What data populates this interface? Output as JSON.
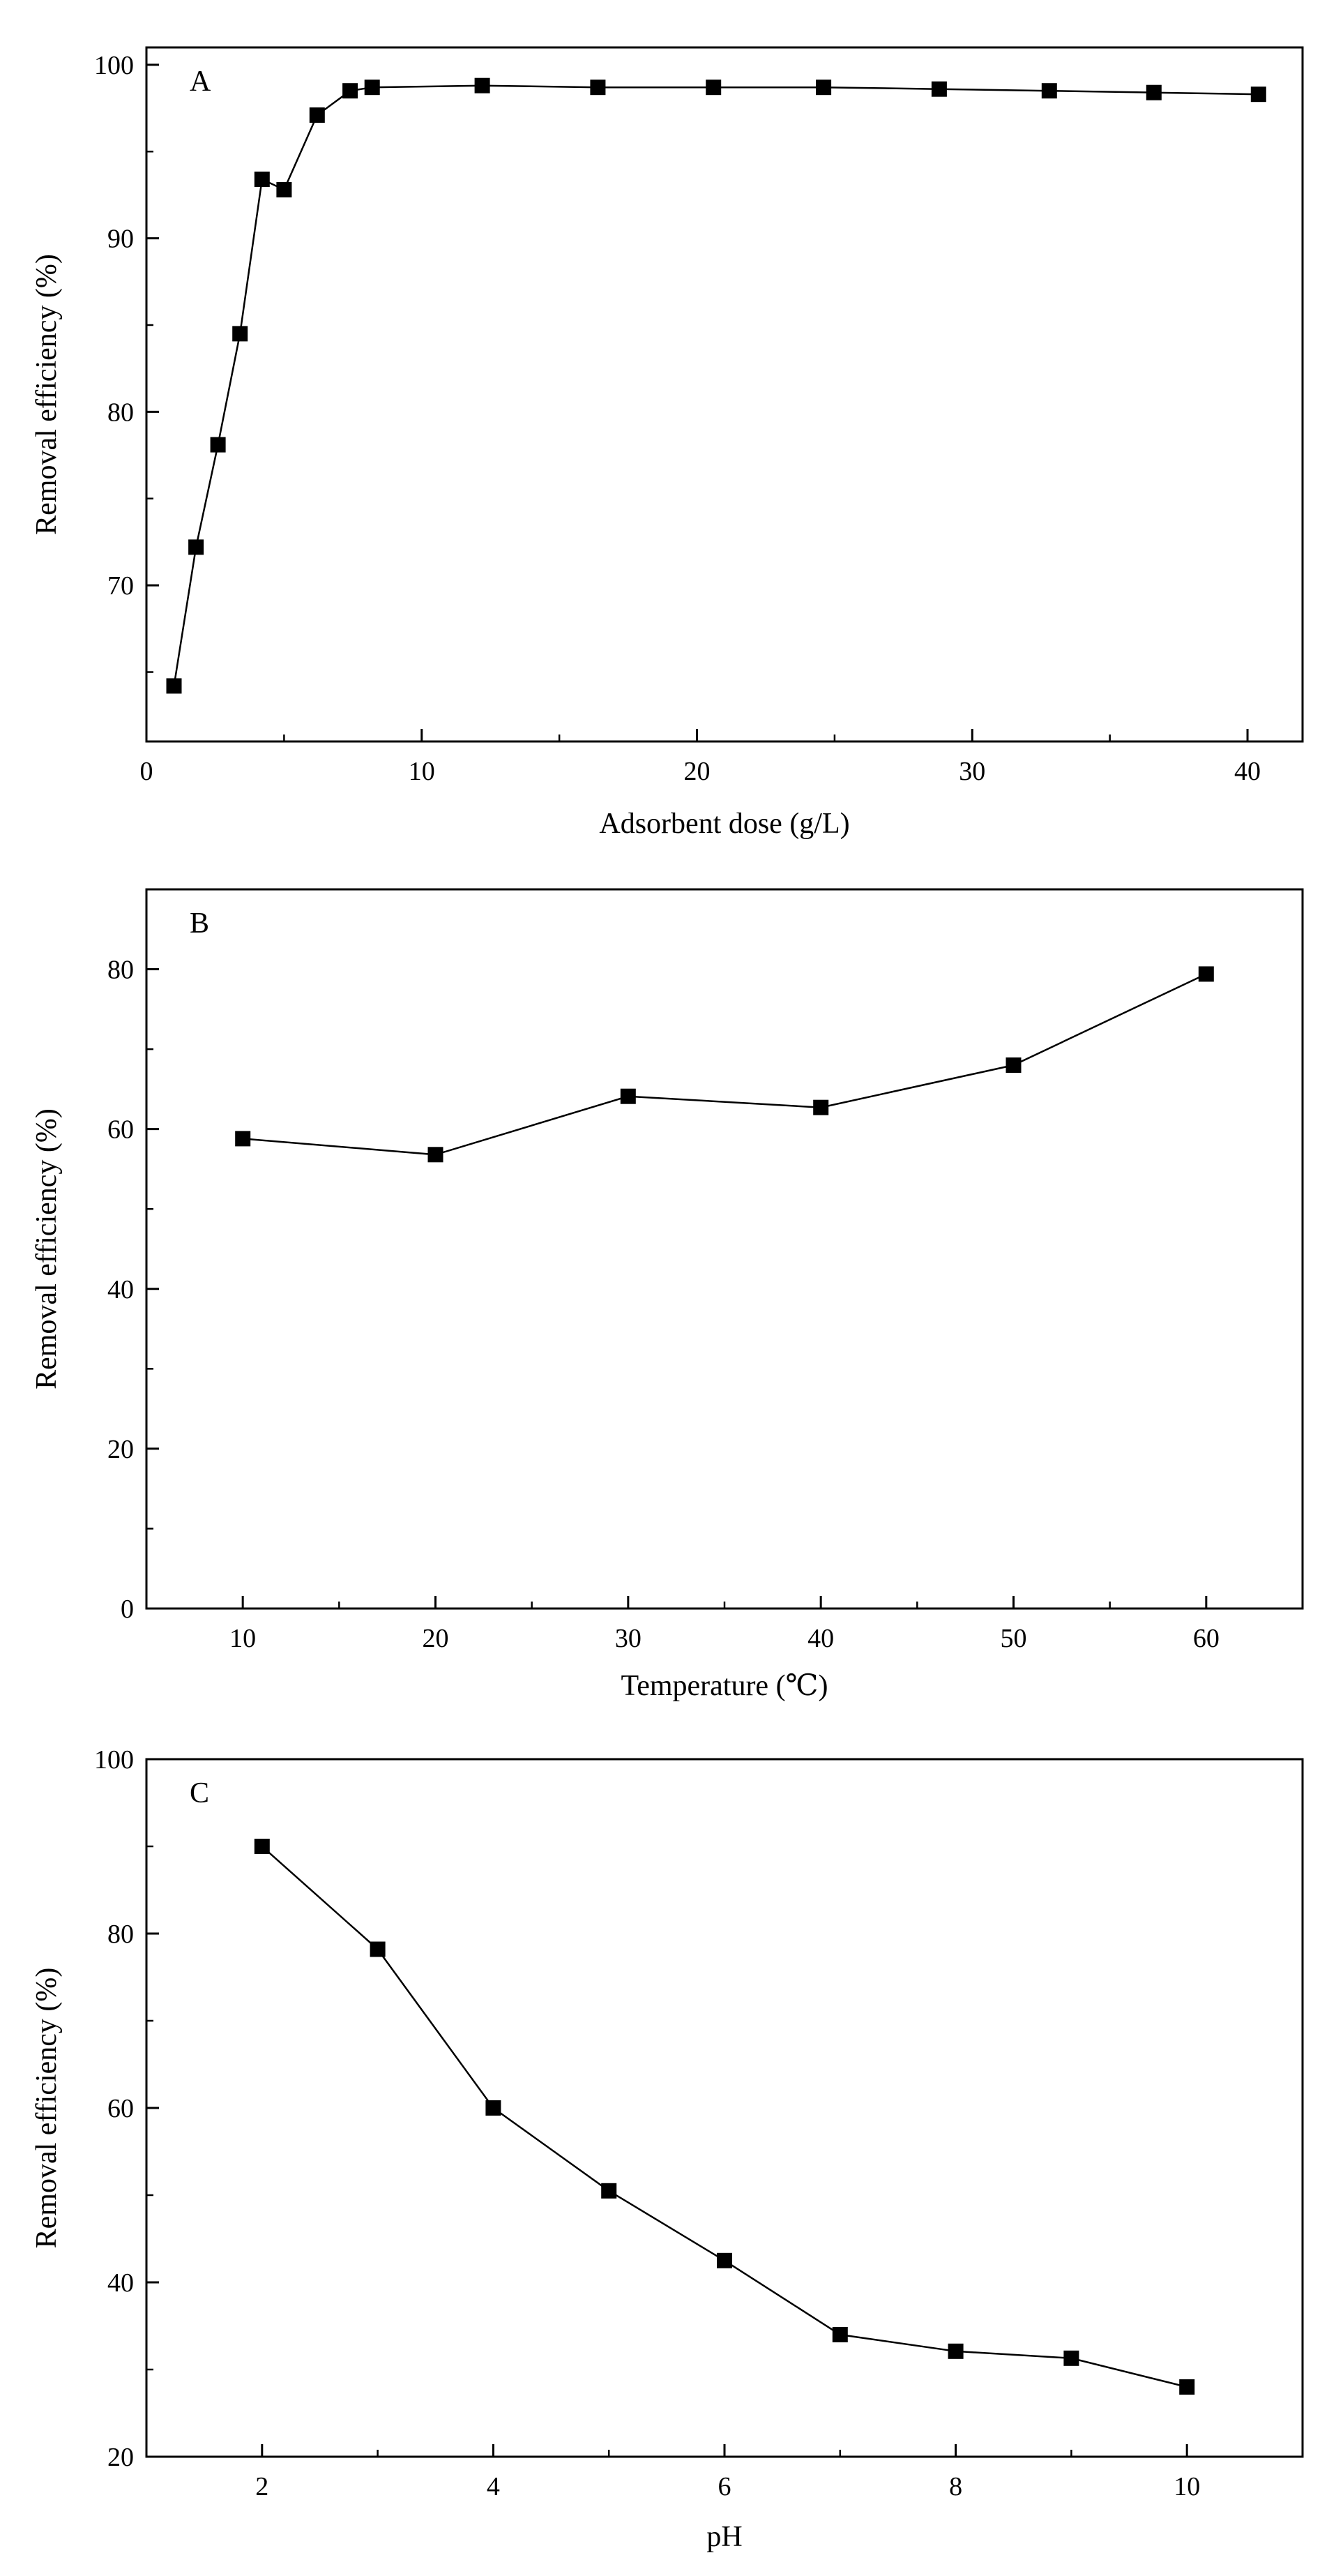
{
  "chart_data": [
    {
      "type": "line",
      "panel_label": "A",
      "title": "",
      "xlabel": "Adsorbent dose (g/L)",
      "ylabel": "Removal efficiency (%)",
      "xlim": [
        0,
        42
      ],
      "ylim": [
        61,
        101
      ],
      "xticks": [
        0,
        10,
        20,
        30,
        40
      ],
      "yticks": [
        70,
        80,
        90,
        100
      ],
      "x_minor_step": 5,
      "y_minor_step": 5,
      "marker": "square",
      "series": [
        {
          "name": "Removal efficiency",
          "x": [
            1.0,
            1.8,
            2.6,
            3.4,
            4.2,
            5.0,
            6.2,
            7.4,
            8.2,
            12.2,
            16.4,
            20.6,
            24.6,
            28.8,
            32.8,
            36.6,
            40.4
          ],
          "y": [
            64.2,
            72.2,
            78.1,
            84.5,
            93.4,
            92.8,
            97.1,
            98.5,
            98.7,
            98.8,
            98.7,
            98.7,
            98.7,
            98.6,
            98.5,
            98.4,
            98.3
          ]
        }
      ]
    },
    {
      "type": "line",
      "panel_label": "B",
      "title": "",
      "xlabel": "Temperature (℃)",
      "ylabel": "Removal efficiency (%)",
      "xlim": [
        5,
        65
      ],
      "ylim": [
        0,
        90
      ],
      "xticks": [
        10,
        20,
        30,
        40,
        50,
        60
      ],
      "yticks": [
        0,
        20,
        40,
        60,
        80
      ],
      "x_minor_step": 5,
      "y_minor_step": 10,
      "marker": "square",
      "series": [
        {
          "name": "Removal efficiency",
          "x": [
            10,
            20,
            30,
            40,
            50,
            60
          ],
          "y": [
            58.8,
            56.8,
            64.1,
            62.7,
            68.0,
            79.4
          ]
        }
      ]
    },
    {
      "type": "line",
      "panel_label": "C",
      "title": "",
      "xlabel": "pH",
      "ylabel": "Removal efficiency (%)",
      "xlim": [
        1,
        11
      ],
      "ylim": [
        20,
        100
      ],
      "xticks": [
        2,
        4,
        6,
        8,
        10
      ],
      "yticks": [
        20,
        40,
        60,
        80,
        100
      ],
      "x_minor_step": 1,
      "y_minor_step": 10,
      "marker": "square",
      "series": [
        {
          "name": "Removal efficiency",
          "x": [
            2,
            3,
            4,
            5,
            6,
            7,
            8,
            9,
            10
          ],
          "y": [
            90.0,
            78.2,
            60.0,
            50.5,
            42.5,
            34.0,
            32.1,
            31.3,
            28.0
          ]
        }
      ]
    }
  ]
}
